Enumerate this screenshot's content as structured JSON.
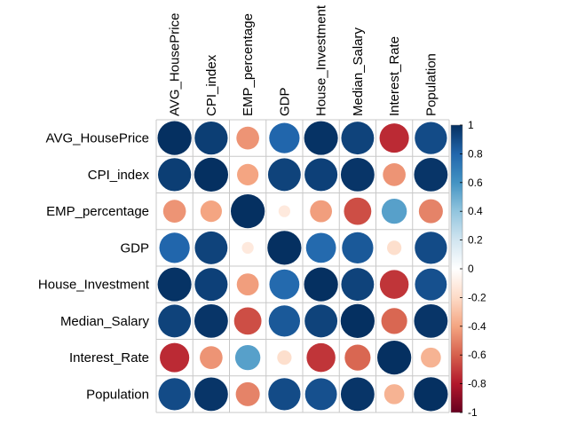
{
  "chart_data": {
    "type": "heatmap",
    "variables": [
      "AVG_HousePrice",
      "CPI_index",
      "EMP_percentage",
      "GDP",
      "House_Investment",
      "Median_Salary",
      "Interest_Rate",
      "Population"
    ],
    "matrix": [
      [
        1.0,
        0.95,
        -0.45,
        0.8,
        0.99,
        0.93,
        -0.75,
        0.9
      ],
      [
        0.95,
        1.0,
        -0.4,
        0.93,
        0.94,
        0.98,
        -0.45,
        0.98
      ],
      [
        -0.45,
        -0.4,
        1.0,
        -0.12,
        -0.42,
        -0.65,
        0.55,
        -0.5
      ],
      [
        0.8,
        0.93,
        -0.12,
        1.0,
        0.78,
        0.85,
        -0.18,
        0.9
      ],
      [
        0.99,
        0.94,
        -0.42,
        0.78,
        1.0,
        0.93,
        -0.72,
        0.88
      ],
      [
        0.93,
        0.98,
        -0.65,
        0.85,
        0.93,
        1.0,
        -0.58,
        0.98
      ],
      [
        -0.75,
        -0.45,
        0.55,
        -0.18,
        -0.72,
        -0.58,
        1.0,
        -0.35
      ],
      [
        0.9,
        0.98,
        -0.5,
        0.9,
        0.88,
        0.98,
        -0.35,
        1.0
      ]
    ],
    "colorbar": {
      "ticks": [
        "-1",
        "-0.8",
        "-0.6",
        "-0.4",
        "-0.2",
        "0",
        "0.2",
        "0.4",
        "0.6",
        "0.8",
        "1"
      ],
      "range": [
        -1,
        1
      ],
      "colors": [
        "#67001F",
        "#B2182B",
        "#D6604D",
        "#F4A582",
        "#FDDBC7",
        "#FFFFFF",
        "#D1E5F0",
        "#92C5DE",
        "#4393C3",
        "#2166AC",
        "#053061"
      ]
    },
    "grid": true,
    "legend": "right"
  }
}
